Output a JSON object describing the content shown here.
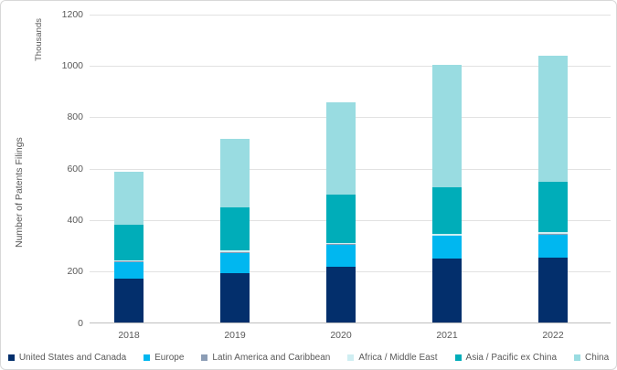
{
  "chart_data": {
    "type": "bar",
    "stacked": true,
    "title": "",
    "ylabel": "Number of Patents Filings",
    "units_label": "Thousands",
    "xlabel": "",
    "categories": [
      "2018",
      "2019",
      "2020",
      "2021",
      "2022"
    ],
    "series": [
      {
        "name": "United States and Canada",
        "color": "#032f6c",
        "values": [
          170,
          190,
          218,
          247,
          251
        ]
      },
      {
        "name": "Europe",
        "color": "#00b7f0",
        "values": [
          65,
          81,
          84,
          89,
          91
        ]
      },
      {
        "name": "Latin America and Caribbean",
        "color": "#8c9db5",
        "values": [
          3,
          3,
          3,
          3,
          3
        ]
      },
      {
        "name": "Africa / Middle East",
        "color": "#cfeef2",
        "values": [
          5,
          5,
          5,
          6,
          6
        ]
      },
      {
        "name": "Asia / Pacific ex China",
        "color": "#00adb9",
        "values": [
          137,
          168,
          188,
          180,
          196
        ]
      },
      {
        "name": "China",
        "color": "#99dce1",
        "values": [
          205,
          266,
          357,
          477,
          490
        ]
      }
    ],
    "totals": [
      585,
      713,
      855,
      1002,
      1037
    ],
    "ylim": [
      0,
      1200
    ],
    "ytick_step": 200,
    "yticks": [
      "0",
      "200",
      "400",
      "600",
      "800",
      "1000",
      "1200"
    ],
    "grid": true,
    "legend_position": "bottom"
  }
}
